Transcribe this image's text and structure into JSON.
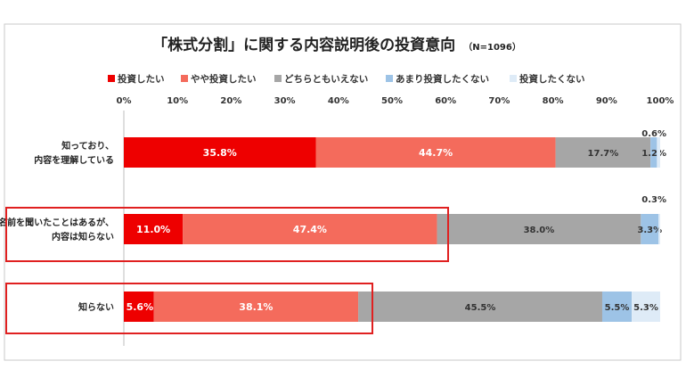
{
  "chart_data": {
    "type": "bar",
    "orientation": "horizontal-stacked-100",
    "title": "「株式分割」に関する内容説明後の投資意向",
    "subtitle": "（N=1096）",
    "xlim": [
      0,
      100
    ],
    "ticks": [
      "0%",
      "10%",
      "20%",
      "30%",
      "40%",
      "50%",
      "60%",
      "70%",
      "80%",
      "90%",
      "100%"
    ],
    "grid": false,
    "legend_position": "top",
    "categories": [
      [
        "知っており、",
        "内容を理解している"
      ],
      [
        "名前を聞いたことはあるが、",
        "内容は知らない"
      ],
      [
        "知らない"
      ]
    ],
    "series": [
      {
        "name": "投資したい",
        "color": "#ee0000",
        "values": [
          35.8,
          11.0,
          5.6
        ],
        "labels": [
          "35.8%",
          "11.0%",
          "5.6%"
        ]
      },
      {
        "name": "やや投資したい",
        "color": "#f46b5c",
        "values": [
          44.7,
          47.4,
          38.1
        ],
        "labels": [
          "44.7%",
          "47.4%",
          "38.1%"
        ]
      },
      {
        "name": "どちらともいえない",
        "color": "#a6a6a6",
        "values": [
          17.7,
          38.0,
          45.5
        ],
        "labels": [
          "17.7%",
          "38.0%",
          "45.5%"
        ]
      },
      {
        "name": "あまり投資したくない",
        "color": "#9dc3e6",
        "values": [
          1.2,
          3.3,
          5.5
        ],
        "labels": [
          "1.2%",
          "3.3%",
          "5.5%"
        ]
      },
      {
        "name": "投資したくない",
        "color": "#deebf7",
        "values": [
          0.6,
          0.3,
          5.3
        ],
        "labels": [
          "0.6%",
          "0.3%",
          "5.3%"
        ]
      }
    ],
    "highlighted_categories": [
      1,
      2
    ],
    "highlight_color": "#e02020"
  }
}
